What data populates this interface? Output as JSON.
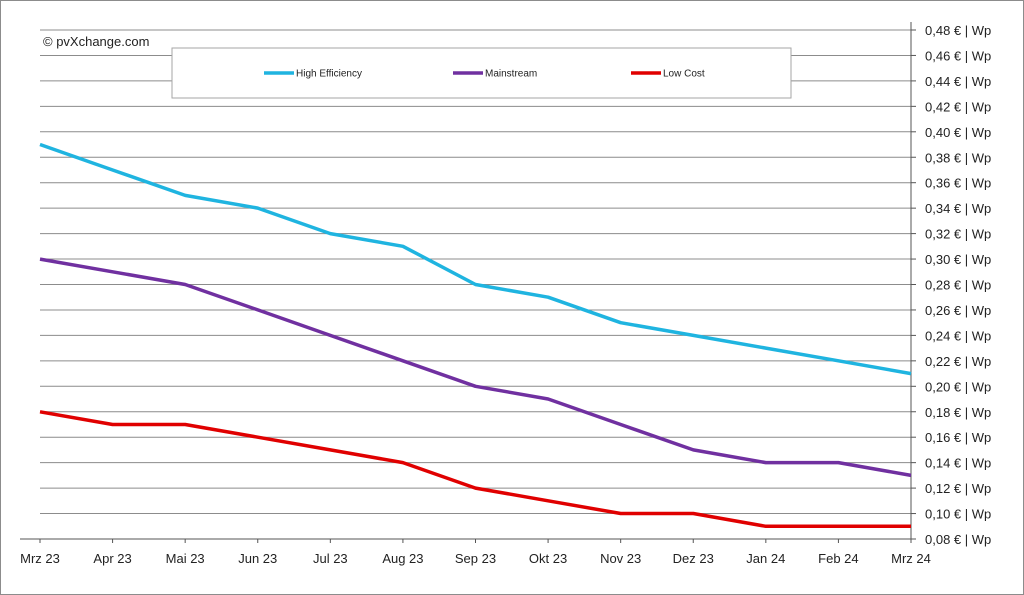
{
  "credit": "© pvXchange.com",
  "colors": {
    "high_efficiency": "#1fb4e0",
    "mainstream": "#7030a0",
    "low_cost": "#e00000",
    "grid": "#8c8c8c"
  },
  "chart_data": {
    "type": "line",
    "title": "",
    "xlabel": "",
    "ylabel": "",
    "categories": [
      "Mrz 23",
      "Apr 23",
      "Mai 23",
      "Jun 23",
      "Jul 23",
      "Aug 23",
      "Sep 23",
      "Okt 23",
      "Nov 23",
      "Dez 23",
      "Jan 24",
      "Feb 24",
      "Mrz 24"
    ],
    "ylim": [
      0.08,
      0.48
    ],
    "ytick_step": 0.02,
    "ytick_labels": [
      "0,08 € | Wp",
      "0,10 € | Wp",
      "0,12 € | Wp",
      "0,14 € | Wp",
      "0,16 € | Wp",
      "0,18 € | Wp",
      "0,20 € | Wp",
      "0,22 € | Wp",
      "0,24 € | Wp",
      "0,26 € | Wp",
      "0,28 € | Wp",
      "0,30 € | Wp",
      "0,32 € | Wp",
      "0,34 € | Wp",
      "0,36 € | Wp",
      "0,38 € | Wp",
      "0,40 € | Wp",
      "0,42 € | Wp",
      "0,44 € | Wp",
      "0,46 € | Wp",
      "0,48 € | Wp"
    ],
    "yaxis_side": "right",
    "grid": true,
    "legend_position": "top",
    "series": [
      {
        "name": "High Efficiency",
        "color": "#1fb4e0",
        "values": [
          0.39,
          0.37,
          0.35,
          0.34,
          0.32,
          0.31,
          0.28,
          0.27,
          0.25,
          0.24,
          0.23,
          0.22,
          0.21
        ]
      },
      {
        "name": "Mainstream",
        "color": "#7030a0",
        "values": [
          0.3,
          0.29,
          0.28,
          0.26,
          0.24,
          0.22,
          0.2,
          0.19,
          0.17,
          0.15,
          0.14,
          0.14,
          0.13
        ]
      },
      {
        "name": "Low Cost",
        "color": "#e00000",
        "values": [
          0.18,
          0.17,
          0.17,
          0.16,
          0.15,
          0.14,
          0.12,
          0.11,
          0.1,
          0.1,
          0.09,
          0.09,
          0.09
        ]
      }
    ]
  }
}
